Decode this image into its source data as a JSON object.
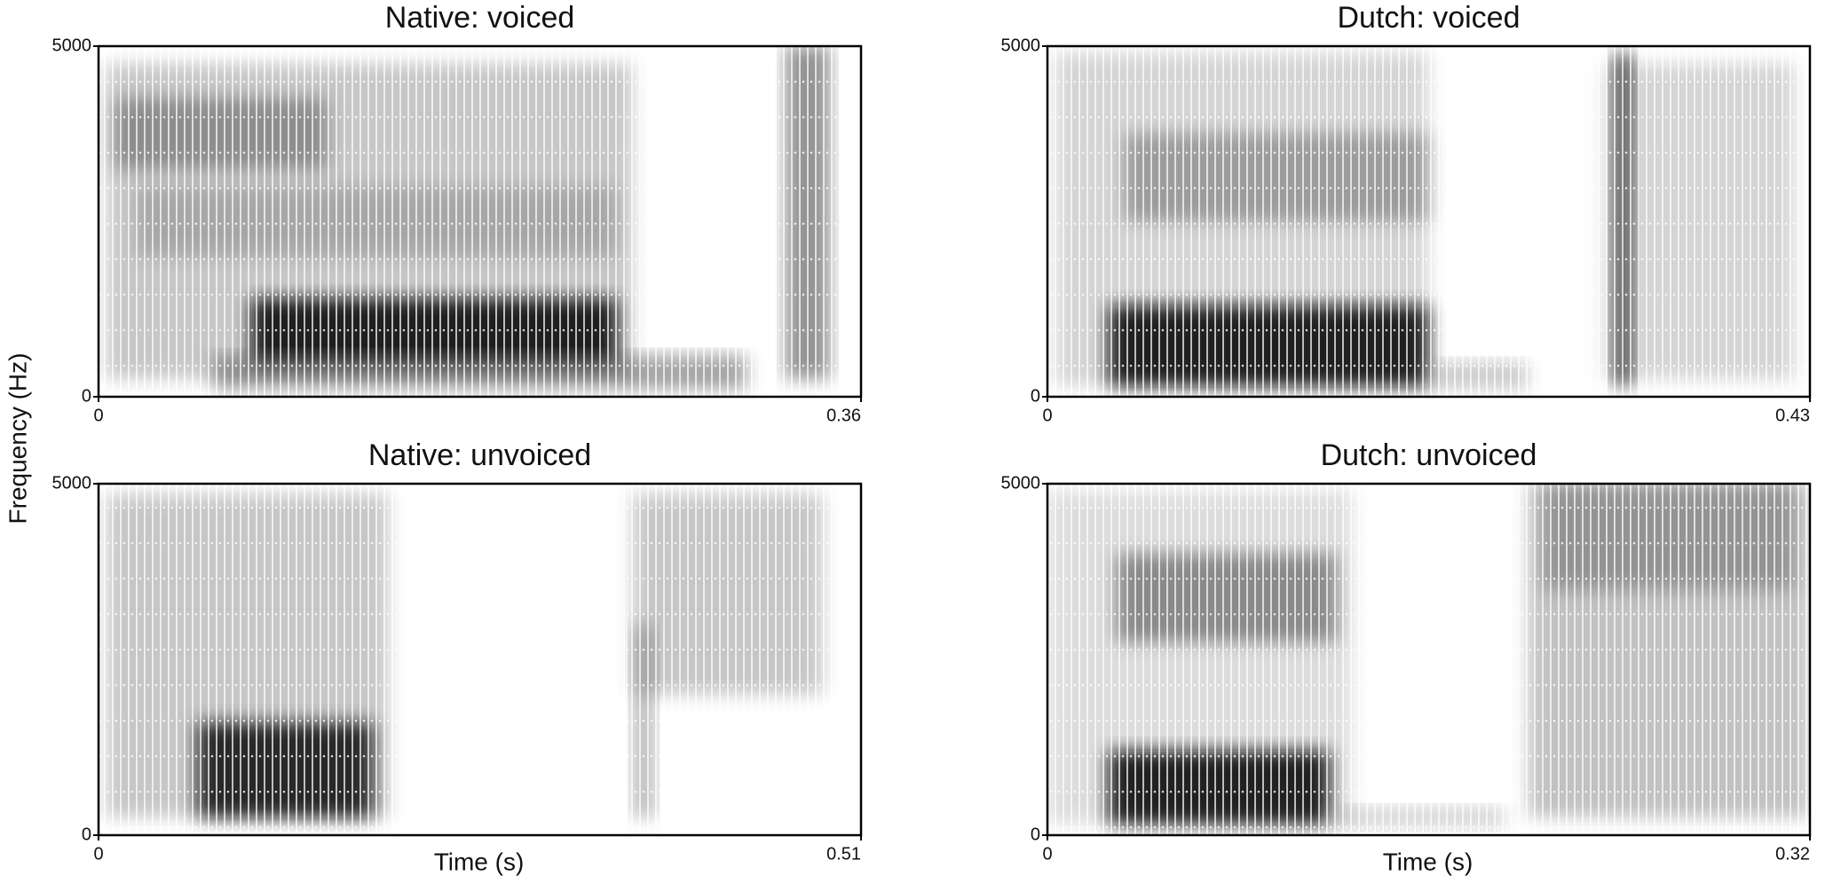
{
  "ylabel": "Frequency (Hz)",
  "chart_data": [
    {
      "type": "spectrogram",
      "title": "Native: voiced",
      "xlim": [
        0,
        0.36
      ],
      "xticks": [
        0,
        0.36
      ],
      "ylim": [
        0,
        5000
      ],
      "yticks": [
        0,
        5000
      ]
    },
    {
      "type": "spectrogram",
      "title": "Dutch: voiced",
      "xlim": [
        0,
        0.43
      ],
      "xticks": [
        0,
        0.43
      ],
      "ylim": [
        0,
        5000
      ],
      "yticks": [
        0,
        5000
      ]
    },
    {
      "type": "spectrogram",
      "title": "Native: unvoiced",
      "xlabel": "Time (s)",
      "xlim": [
        0,
        0.51
      ],
      "xticks": [
        0,
        0.51
      ],
      "ylim": [
        0,
        5000
      ],
      "yticks": [
        0,
        5000
      ]
    },
    {
      "type": "spectrogram",
      "title": "Dutch: unvoiced",
      "xlabel": "Time (s)",
      "xlim": [
        0,
        0.32
      ],
      "xticks": [
        0,
        0.32
      ],
      "ylim": [
        0,
        5000
      ],
      "yticks": [
        0,
        5000
      ]
    }
  ]
}
